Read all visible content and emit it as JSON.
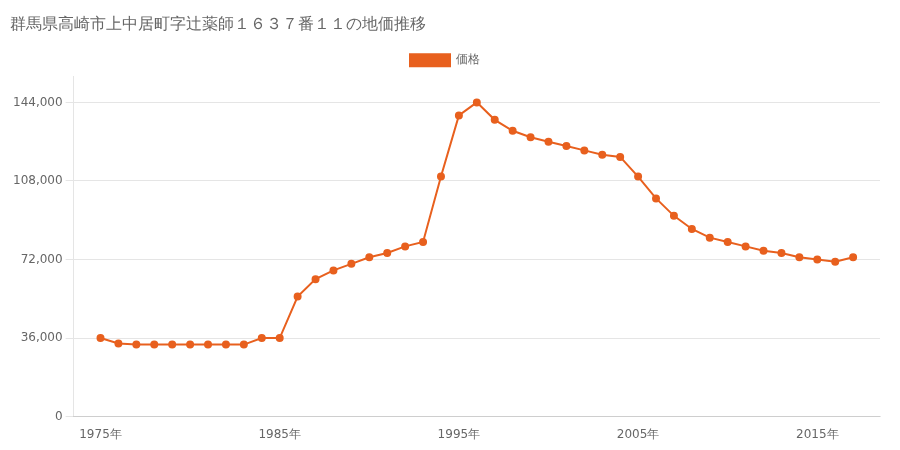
{
  "chart_data": {
    "type": "line",
    "title": "群馬県高崎市上中居町字辻薬師１６３７番１１の地価推移",
    "x": [
      1975,
      1976,
      1977,
      1978,
      1979,
      1980,
      1981,
      1982,
      1983,
      1984,
      1985,
      1986,
      1987,
      1988,
      1989,
      1990,
      1991,
      1992,
      1993,
      1994,
      1995,
      1996,
      1997,
      1998,
      1999,
      2000,
      2001,
      2002,
      2003,
      2004,
      2005,
      2006,
      2007,
      2008,
      2009,
      2010,
      2011,
      2012,
      2013,
      2014,
      2015,
      2016,
      2017
    ],
    "series": [
      {
        "name": "価格",
        "color": "#e8601e",
        "marker": "circle",
        "values": [
          36000,
          33500,
          33000,
          33000,
          33000,
          33000,
          33000,
          33000,
          33000,
          36000,
          36000,
          55000,
          63000,
          67000,
          70000,
          73000,
          75000,
          78000,
          80000,
          110000,
          138000,
          144000,
          136000,
          131000,
          128000,
          126000,
          124000,
          122000,
          120000,
          119000,
          110000,
          100000,
          92000,
          86000,
          82000,
          80000,
          78000,
          76000,
          75000,
          73000,
          72000,
          71000,
          73000
        ]
      }
    ],
    "xlim": [
      1973.5,
      2018.5
    ],
    "xticks": [
      {
        "value": 1975,
        "label": "1975年"
      },
      {
        "value": 1985,
        "label": "1985年"
      },
      {
        "value": 1995,
        "label": "1995年"
      },
      {
        "value": 2005,
        "label": "2005年"
      },
      {
        "value": 2015,
        "label": "2015年"
      }
    ],
    "ylim": [
      0,
      156000
    ],
    "yticks": [
      0,
      {
        "value": 36000,
        "label": "36,000"
      },
      {
        "value": 72000,
        "label": "72,000"
      },
      {
        "value": 108000,
        "label": "108,000"
      },
      {
        "value": 144000,
        "label": "144,000"
      }
    ],
    "grid": "y",
    "legend": "top"
  }
}
